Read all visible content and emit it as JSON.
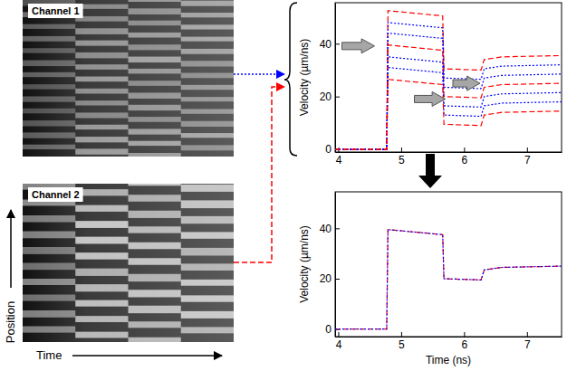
{
  "images": [
    {
      "label": "Channel 1"
    },
    {
      "label": "Channel 2"
    }
  ],
  "image_axes": {
    "y_label": "Position",
    "x_label": "Time"
  },
  "chart_data": [
    {
      "type": "line",
      "y_label": "Velocity (µm/ns)",
      "x": [
        3.95,
        4.77,
        4.79,
        5.66,
        5.68,
        6.27,
        6.32,
        6.6,
        7.55
      ],
      "xlim": [
        3.95,
        7.55
      ],
      "xticks": [
        4,
        5,
        6,
        7
      ],
      "ylim": [
        -1,
        55.5
      ],
      "yticks": [
        0,
        20,
        40
      ],
      "series": [
        {
          "color": "#ff0000",
          "line_style": "dashed",
          "values": [
            0,
            0,
            52.5,
            50.5,
            30.5,
            30,
            34,
            35,
            35.5
          ]
        },
        {
          "color": "#0000ff",
          "line_style": "dotted",
          "values": [
            0,
            0,
            48,
            46,
            27,
            26.5,
            30.5,
            31.5,
            32
          ]
        },
        {
          "color": "#0000ff",
          "line_style": "dotted",
          "values": [
            0,
            0,
            44,
            42,
            23.5,
            23,
            27,
            28,
            28.5
          ]
        },
        {
          "color": "#ff0000",
          "line_style": "dashed",
          "values": [
            0,
            0,
            39.5,
            37.5,
            20,
            19.5,
            23.5,
            24.5,
            25
          ]
        },
        {
          "color": "#0000ff",
          "line_style": "dotted",
          "values": [
            0,
            0,
            35,
            33,
            16.5,
            16,
            20,
            21,
            21.5
          ]
        },
        {
          "color": "#0000ff",
          "line_style": "dotted",
          "values": [
            0,
            0,
            31,
            29,
            13,
            12.5,
            16.5,
            17.5,
            18
          ]
        },
        {
          "color": "#ff0000",
          "line_style": "dashed",
          "values": [
            0,
            0,
            26.5,
            24.5,
            9.5,
            9,
            13,
            14,
            14.5
          ]
        }
      ]
    },
    {
      "type": "line",
      "x_label": "Time (ns)",
      "y_label": "Velocity (µm/ns)",
      "x": [
        3.95,
        4.77,
        4.79,
        5.66,
        5.68,
        6.27,
        6.32,
        6.6,
        7.55
      ],
      "xlim": [
        3.95,
        7.55
      ],
      "xticks": [
        4,
        5,
        6,
        7
      ],
      "ylim": [
        -3,
        54.5
      ],
      "yticks": [
        0,
        20,
        40
      ],
      "series": [
        {
          "color": "#ff0000",
          "line_style": "dashed",
          "values": [
            0,
            0,
            39.5,
            37.5,
            20,
            19.5,
            23.5,
            24.5,
            25
          ]
        },
        {
          "color": "#0000ff",
          "line_style": "dotted",
          "values": [
            0,
            0,
            39.5,
            37.5,
            20,
            19.5,
            23.5,
            24.5,
            25
          ]
        }
      ]
    }
  ]
}
